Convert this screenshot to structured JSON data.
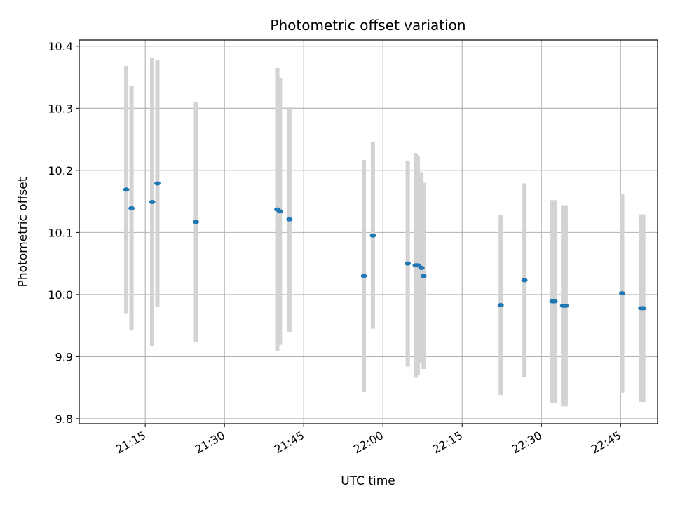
{
  "chart_data": {
    "type": "scatter",
    "title": "Photometric offset variation",
    "xlabel": "UTC time",
    "ylabel": "Photometric offset",
    "x_unit": "HH:MM UTC",
    "xlim": [
      "21:02:30",
      "22:52:00"
    ],
    "ylim": [
      9.792,
      10.41
    ],
    "x_ticks": [
      "21:15",
      "21:30",
      "21:45",
      "22:00",
      "22:15",
      "22:30",
      "22:45"
    ],
    "y_ticks": [
      "9.8",
      "9.9",
      "10.0",
      "10.1",
      "10.2",
      "10.3",
      "10.4"
    ],
    "grid": true,
    "legend": "none",
    "point_color": "#1f77b4",
    "errorbar_color": "#d3d3d3",
    "series": [
      {
        "points": [
          {
            "x": "21:11:24",
            "y": 10.169,
            "yerr": 0.199
          },
          {
            "x": "21:12:24",
            "y": 10.139,
            "yerr": 0.197
          },
          {
            "x": "21:16:18",
            "y": 10.149,
            "yerr": 0.232
          },
          {
            "x": "21:17:18",
            "y": 10.179,
            "yerr": 0.199
          },
          {
            "x": "21:24:36",
            "y": 10.117,
            "yerr": 0.193
          },
          {
            "x": "21:40:00",
            "y": 10.137,
            "yerr": 0.228
          },
          {
            "x": "21:40:30",
            "y": 10.134,
            "yerr": 0.215
          },
          {
            "x": "21:42:18",
            "y": 10.121,
            "yerr": 0.181
          },
          {
            "x": "21:56:24",
            "y": 10.03,
            "yerr": 0.187
          },
          {
            "x": "21:58:06",
            "y": 10.095,
            "yerr": 0.15
          },
          {
            "x": "22:04:42",
            "y": 10.05,
            "yerr": 0.166
          },
          {
            "x": "22:06:12",
            "y": 10.047,
            "yerr": 0.181
          },
          {
            "x": "22:06:36",
            "y": 10.047,
            "yerr": 0.177
          },
          {
            "x": "22:07:18",
            "y": 10.043,
            "yerr": 0.154
          },
          {
            "x": "22:07:42",
            "y": 10.03,
            "yerr": 0.15
          },
          {
            "x": "22:22:18",
            "y": 9.983,
            "yerr": 0.145
          },
          {
            "x": "22:26:48",
            "y": 10.023,
            "yerr": 0.156
          },
          {
            "x": "22:32:06",
            "y": 9.989,
            "yerr": 0.163
          },
          {
            "x": "22:32:30",
            "y": 9.989,
            "yerr": 0.163
          },
          {
            "x": "22:34:06",
            "y": 9.982,
            "yerr": 0.162
          },
          {
            "x": "22:34:36",
            "y": 9.982,
            "yerr": 0.162
          },
          {
            "x": "22:45:18",
            "y": 10.002,
            "yerr": 0.16
          },
          {
            "x": "22:48:54",
            "y": 9.978,
            "yerr": 0.151
          },
          {
            "x": "22:49:18",
            "y": 9.978,
            "yerr": 0.151
          }
        ]
      }
    ]
  }
}
